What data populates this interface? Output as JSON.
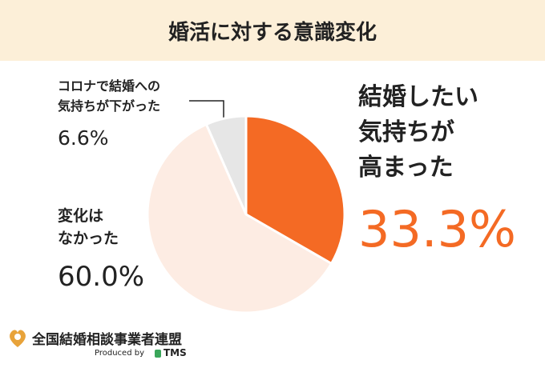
{
  "chart_data": {
    "type": "pie",
    "title": "婚活に対する意識変化",
    "categories": [
      "結婚したい\n気持ちが\n高まった",
      "変化は\nなかった",
      "コロナで結婚への\n気持ちが下がった"
    ],
    "values": [
      33.3,
      60.0,
      6.6
    ],
    "value_labels": [
      "33.3%",
      "60.0%",
      "6.6%"
    ],
    "colors": [
      "#f46a24",
      "#fdece3",
      "#e6e6e6"
    ]
  },
  "footer": {
    "org": "全国結婚相談事業者連盟",
    "produced_by": "Produced by",
    "brand": "TMS"
  }
}
